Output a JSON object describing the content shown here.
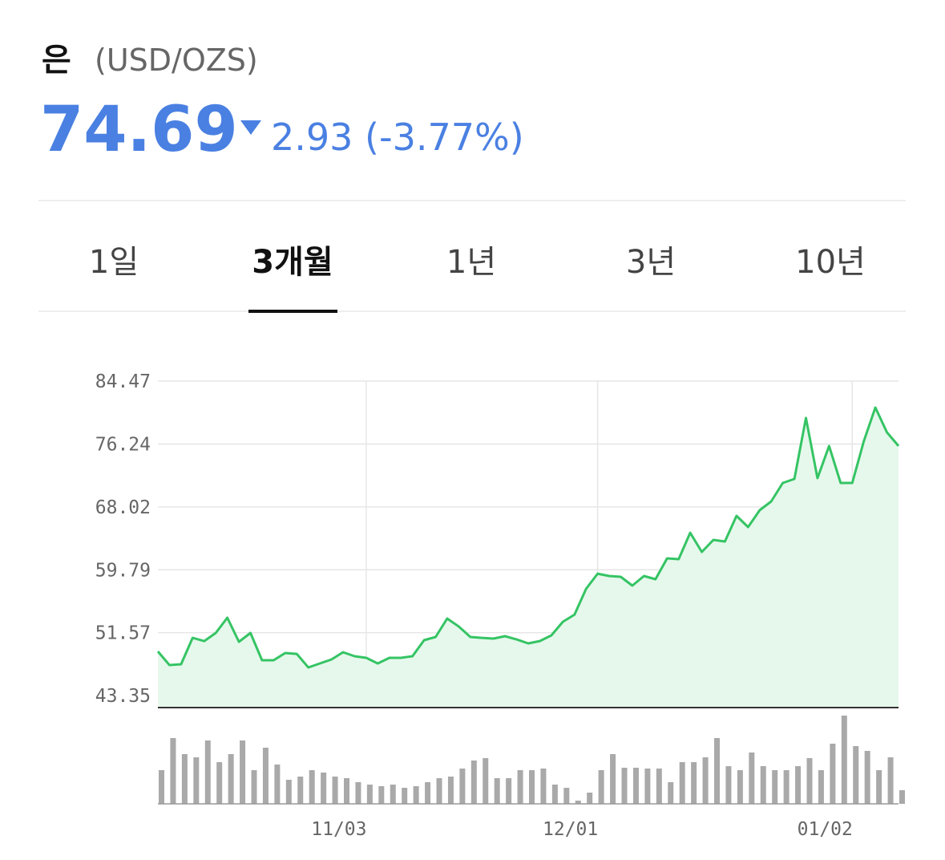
{
  "header": {
    "title": "은",
    "unit": "(USD/OZS)",
    "price": "74.69",
    "change": "2.93 (-3.77%)"
  },
  "tabs": [
    "1일",
    "3개월",
    "1년",
    "3년",
    "10년"
  ],
  "active_tab": 1,
  "chart_data": [
    {
      "type": "line",
      "color": "#35c464",
      "fill": "#e6f8ec",
      "categories": [
        null,
        null,
        null,
        null,
        null,
        null,
        null,
        null,
        null,
        null,
        null,
        null,
        null,
        null,
        null,
        null,
        null,
        null,
        "11/03",
        null,
        null,
        null,
        null,
        null,
        null,
        null,
        null,
        null,
        null,
        null,
        null,
        null,
        null,
        null,
        null,
        null,
        null,
        null,
        "12/01",
        null,
        null,
        null,
        null,
        null,
        null,
        null,
        null,
        null,
        null,
        null,
        null,
        null,
        null,
        null,
        null,
        null,
        null,
        null,
        null,
        null,
        "01/02",
        null,
        null,
        null,
        null
      ],
      "values": [
        49.12,
        47.34,
        47.44,
        50.9,
        50.48,
        51.53,
        53.53,
        50.38,
        51.53,
        47.97,
        47.97,
        48.91,
        48.8,
        47.02,
        47.55,
        48.07,
        49.02,
        48.49,
        48.28,
        47.55,
        48.28,
        48.28,
        48.49,
        50.59,
        51.01,
        53.42,
        52.37,
        51.01,
        50.9,
        50.8,
        51.11,
        50.69,
        50.17,
        50.48,
        51.22,
        53.0,
        53.94,
        57.3,
        59.29,
        58.98,
        58.88,
        57.72,
        58.98,
        58.56,
        61.29,
        61.18,
        64.64,
        62.13,
        63.7,
        63.49,
        66.85,
        65.38,
        67.58,
        68.74,
        71.15,
        71.67,
        79.65,
        71.78,
        75.98,
        71.15,
        71.15,
        76.6,
        81.01,
        77.76,
        75.98
      ],
      "ylim": [
        41.78,
        84.47
      ],
      "yticks": [
        43.35,
        51.57,
        59.79,
        68.02,
        76.24,
        84.47
      ],
      "grid": true
    },
    {
      "type": "bar",
      "color": "#a9a9a9",
      "values": [
        42,
        82,
        62,
        58,
        79,
        52,
        62,
        79,
        42,
        70,
        49,
        30,
        34,
        42,
        39,
        34,
        32,
        27,
        24,
        22,
        24,
        20,
        22,
        27,
        32,
        34,
        44,
        54,
        57,
        32,
        32,
        42,
        42,
        44,
        24,
        20,
        4,
        14,
        42,
        62,
        45,
        45,
        44,
        44,
        27,
        52,
        52,
        58,
        82,
        47,
        42,
        64,
        47,
        42,
        42,
        47,
        57,
        42,
        75,
        110,
        72,
        66,
        42,
        58,
        17
      ],
      "ylim": [
        0,
        120
      ]
    }
  ]
}
